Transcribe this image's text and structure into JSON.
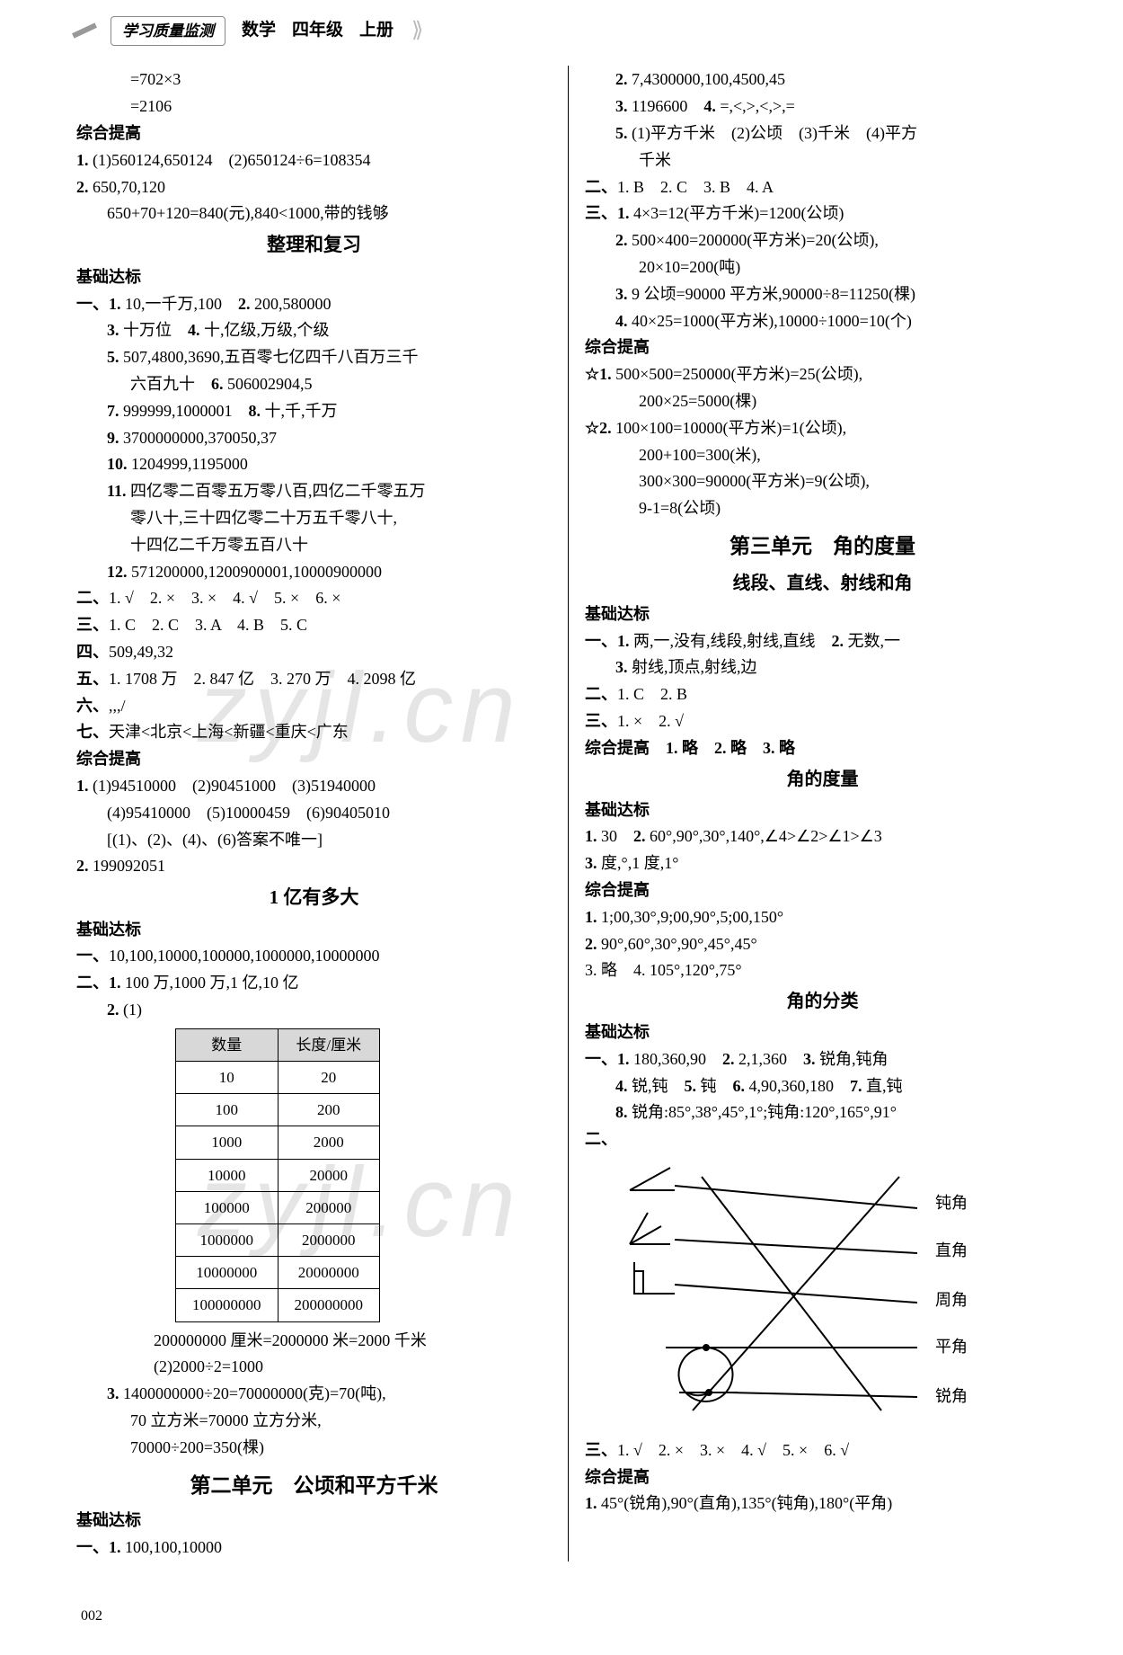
{
  "header": {
    "label": "学习质量监测",
    "subject": "数学",
    "grade": "四年级",
    "volume": "上册"
  },
  "page_number": "002",
  "watermark": "zyjl.cn",
  "left": {
    "top_eq": [
      "=702×3",
      "=2106"
    ],
    "zh_tigao1": "综合提高",
    "l1": "(1)560124,650124　(2)650124÷6=108354",
    "l2a": "650,70,120",
    "l2b": "650+70+120=840(元),840<1000,带的钱够",
    "h_review": "整理和复习",
    "jc_dabiao": "基础达标",
    "y1_1": "10,一千万,100",
    "y1_2": "200,580000",
    "y1_3": "十万位",
    "y1_4": "十,亿级,万级,个级",
    "y1_5": "507,4800,3690,五百零七亿四千八百万三千",
    "y1_5b": "六百九十",
    "y1_6": "506002904,5",
    "y1_7": "999999,1000001",
    "y1_8": "十,千,千万",
    "y1_9": "3700000000,370050,37",
    "y1_10": "1204999,1195000",
    "y1_11a": "四亿零二百零五万零八百,四亿二千零五万",
    "y1_11b": "零八十,三十四亿零二十万五千零八十,",
    "y1_11c": "十四亿二千万零五百八十",
    "y1_12": "571200000,1200900001,10000900000",
    "y2": "1. √　2. ×　3. ×　4. √　5. ×　6. ×",
    "y3": "1. C　2. C　3. A　4. B　5. C",
    "y4": "509,49,32",
    "y5": "1. 1708 万　2. 847 亿　3. 270 万　4. 2098 亿",
    "y6": ",,,/",
    "y7": "天津<北京<上海<新疆<重庆<广东",
    "zh_tigao2": "综合提高",
    "zt1a": "(1)94510000　(2)90451000　(3)51940000",
    "zt1b": "(4)95410000　(5)10000459　(6)90405010",
    "zt1c": "[(1)、(2)、(4)、(6)答案不唯一]",
    "zt2": "199092051",
    "h_yi": "1 亿有多大",
    "jc_dabiao2": "基础达标",
    "yi1": "10,100,10000,100000,1000000,10000000",
    "yi2_1": "100 万,1000 万,1 亿,10 亿",
    "table": {
      "headers": [
        "数量",
        "长度/厘米"
      ],
      "rows": [
        [
          "10",
          "20"
        ],
        [
          "100",
          "200"
        ],
        [
          "1000",
          "2000"
        ],
        [
          "10000",
          "20000"
        ],
        [
          "100000",
          "200000"
        ],
        [
          "1000000",
          "2000000"
        ],
        [
          "10000000",
          "20000000"
        ],
        [
          "100000000",
          "200000000"
        ]
      ]
    },
    "t_below1": "200000000 厘米=2000000 米=2000 千米",
    "t_below2": "(2)2000÷2=1000",
    "yi3a": "1400000000÷20=70000000(克)=70(吨),",
    "yi3b": "70 立方米=70000 立方分米,",
    "yi3c": "70000÷200=350(棵)",
    "h_unit2": "第二单元　公顷和平方千米",
    "jc_dabiao3": "基础达标",
    "u2_1": "100,100,10000"
  },
  "right": {
    "r2": "7,4300000,100,4500,45",
    "r3": "1196600",
    "r4": "=,<,>,<,>,=",
    "r5": "(1)平方千米　(2)公顷　(3)千米　(4)平方",
    "r5b": "千米",
    "er2": "1. B　2. C　3. B　4. A",
    "s3_1": "4×3=12(平方千米)=1200(公顷)",
    "s3_2a": "500×400=200000(平方米)=20(公顷),",
    "s3_2b": "20×10=200(吨)",
    "s3_3": "9 公顷=90000 平方米,90000÷8=11250(棵)",
    "s3_4": "40×25=1000(平方米),10000÷1000=10(个)",
    "zh_tigao": "综合提高",
    "zt_star1a": "500×500=250000(平方米)=25(公顷),",
    "zt_star1b": "200×25=5000(棵)",
    "zt_star2a": "100×100=10000(平方米)=1(公顷),",
    "zt_star2b": "200+100=300(米),",
    "zt_star2c": "300×300=90000(平方米)=9(公顷),",
    "zt_star2d": "9-1=8(公顷)",
    "h_unit3": "第三单元　角的度量",
    "h_sub1": "线段、直线、射线和角",
    "jc1": "基础达标",
    "a1_1": "两,一,没有,线段,射线,直线",
    "a1_2": "无数,一",
    "a1_3": "射线,顶点,射线,边",
    "a2": "1. C　2. B",
    "a3": "1. ×　2. √",
    "a_zh": "综合提高　1. 略　2. 略　3. 略",
    "h_sub2": "角的度量",
    "jc2": "基础达标",
    "b1": "30",
    "b2": "60°,90°,30°,140°,∠4>∠2>∠1>∠3",
    "b3": "度,°,1 度,1°",
    "zh2": "综合提高",
    "c1": "1;00,30°,9;00,90°,5;00,150°",
    "c2": "90°,60°,30°,90°,45°,45°",
    "c3_4": "3. 略　4. 105°,120°,75°",
    "h_sub3": "角的分类",
    "jc3": "基础达标",
    "d1_1": "180,360,90",
    "d1_2": "2,1,360",
    "d1_3": "锐角,钝角",
    "d1_4": "锐,钝",
    "d1_5": "钝",
    "d1_6": "4,90,360,180",
    "d1_7": "直,钝",
    "d1_8": "锐角:85°,38°,45°,1°;钝角:120°,165°,91°",
    "diagram_labels": {
      "l1": "钝角",
      "l2": "直角",
      "l3": "周角",
      "l4": "平角",
      "l5": "锐角"
    },
    "d3": "1. √　2. ×　3. ×　4. √　5. ×　6. √",
    "zh3": "综合提高",
    "e1": "45°(锐角),90°(直角),135°(钝角),180°(平角)"
  }
}
